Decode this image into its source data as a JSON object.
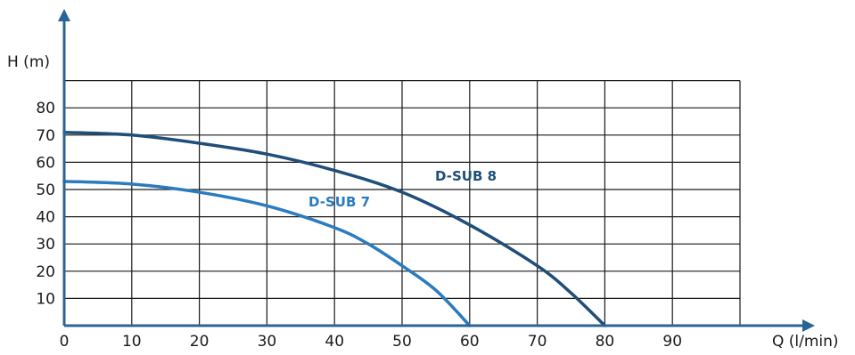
{
  "chart_data": {
    "type": "line",
    "xlabel": "Q (l/min)",
    "ylabel": "H (m)",
    "xlim": [
      0,
      100
    ],
    "ylim": [
      0,
      90
    ],
    "x_ticks": [
      "0",
      "10",
      "20",
      "30",
      "40",
      "50",
      "60",
      "70",
      "80",
      "90"
    ],
    "y_ticks": [
      "10",
      "20",
      "30",
      "40",
      "50",
      "60",
      "70",
      "80"
    ],
    "grid": true,
    "series": [
      {
        "name": "D-SUB 8",
        "color": "#1f4e79",
        "x": [
          0,
          10,
          20,
          30,
          40,
          50,
          60,
          70,
          75,
          80
        ],
        "y": [
          71,
          70,
          67,
          63,
          57,
          49,
          37,
          22,
          12,
          0
        ]
      },
      {
        "name": "D-SUB 7",
        "color": "#2b7bbf",
        "x": [
          0,
          10,
          20,
          30,
          40,
          45,
          50,
          55,
          60
        ],
        "y": [
          53,
          52,
          49,
          44,
          36,
          30,
          22,
          13,
          0
        ]
      }
    ],
    "axis_color": "#2a6496"
  }
}
